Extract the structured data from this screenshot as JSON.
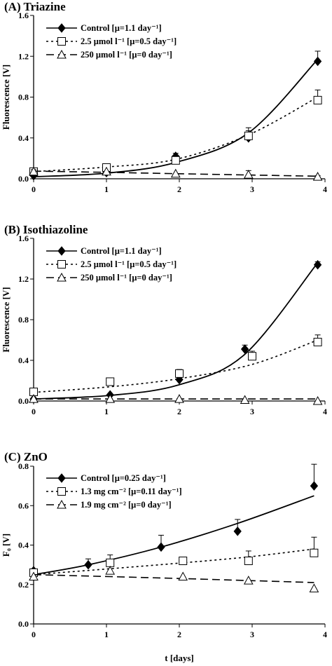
{
  "chart_data": [
    {
      "type": "line",
      "title": "(A) Triazine",
      "xlabel": "",
      "ylabel": "Fluorescence [V]",
      "xlim": [
        0,
        4
      ],
      "ylim": [
        0,
        1.6
      ],
      "xticks": [
        "0",
        "1",
        "2",
        "3",
        "4"
      ],
      "yticks": [
        "0.0",
        "0.4",
        "0.8",
        "1.2",
        "1.6"
      ],
      "grid": false,
      "legend_position": "top-left",
      "series": [
        {
          "name": "Control [μ=1.1 day⁻¹]",
          "marker": "filled-diamond",
          "line": "solid",
          "x": [
            0,
            1,
            1.95,
            2.95,
            3.9
          ],
          "y": [
            0.03,
            0.06,
            0.22,
            0.4,
            1.15
          ],
          "error": [
            0,
            0,
            0.03,
            0.07,
            0.1
          ],
          "fit_y": [
            0.02,
            0.055,
            0.16,
            0.45,
            1.17
          ]
        },
        {
          "name": "2.5 μmol l⁻¹ [μ=0.5 day⁻¹]",
          "marker": "open-square",
          "line": "dotted",
          "x": [
            0,
            1,
            1.95,
            2.95,
            3.9
          ],
          "y": [
            0.07,
            0.11,
            0.18,
            0.42,
            0.77
          ],
          "error": [
            0.02,
            0.03,
            0.03,
            0.08,
            0.1
          ],
          "fit_y": [
            0.07,
            0.115,
            0.19,
            0.43,
            0.8
          ]
        },
        {
          "name": "250 μmol l⁻¹ [μ=0 day⁻¹]",
          "marker": "open-triangle",
          "line": "dashed",
          "x": [
            0,
            1,
            1.95,
            2.95,
            3.9
          ],
          "y": [
            0.07,
            0.07,
            0.05,
            0.04,
            0.02
          ],
          "error": [
            0.02,
            0,
            0,
            0.04,
            0.01
          ],
          "fit_y": [
            0.075,
            0.063,
            0.05,
            0.037,
            0.025
          ]
        }
      ]
    },
    {
      "type": "line",
      "title": "(B) Isothiazoline",
      "xlabel": "",
      "ylabel": "Fluorescence [V]",
      "xlim": [
        0,
        4
      ],
      "ylim": [
        0,
        1.6
      ],
      "xticks": [
        "0",
        "1",
        "2",
        "3",
        "4"
      ],
      "yticks": [
        "0.0",
        "0.4",
        "0.8",
        "1.2",
        "1.6"
      ],
      "grid": false,
      "legend_position": "top-left",
      "series": [
        {
          "name": "Control [μ=1.1 day⁻¹]",
          "marker": "filled-diamond",
          "line": "solid",
          "x": [
            0,
            1.05,
            2,
            2.9,
            3.9
          ],
          "y": [
            0.02,
            0.06,
            0.21,
            0.51,
            1.34
          ],
          "error": [
            0,
            0,
            0.02,
            0.04,
            0.03
          ],
          "fit_y": [
            0.02,
            0.055,
            0.16,
            0.46,
            1.36
          ]
        },
        {
          "name": "2.5 μmol l⁻¹ [μ=0.5 day⁻¹]",
          "marker": "open-square",
          "line": "dotted",
          "x": [
            0,
            1.05,
            2,
            3,
            3.9
          ],
          "y": [
            0.09,
            0.19,
            0.27,
            0.44,
            0.58
          ],
          "error": [
            0,
            0,
            0.04,
            0.05,
            0.07
          ],
          "fit_y": [
            0.085,
            0.14,
            0.22,
            0.36,
            0.6
          ]
        },
        {
          "name": "250 μmol l⁻¹ [μ=0 day⁻¹]",
          "marker": "open-triangle",
          "line": "dashed",
          "x": [
            0,
            1.05,
            2,
            2.9,
            3.9
          ],
          "y": [
            0.02,
            0.02,
            0.02,
            0.01,
            0.0
          ],
          "error": [
            0,
            0,
            0,
            0,
            0
          ],
          "fit_y": [
            0.02,
            0.02,
            0.02,
            0.02,
            0.02
          ]
        }
      ]
    },
    {
      "type": "line",
      "title": "(C) ZnO",
      "xlabel": "t [days]",
      "ylabel": "F₀ [V]",
      "xlim": [
        0,
        4
      ],
      "ylim": [
        0,
        0.8
      ],
      "xticks": [
        "0",
        "1",
        "2",
        "3",
        "4"
      ],
      "yticks": [
        "0.0",
        "0.2",
        "0.4",
        "0.6",
        "0.8"
      ],
      "grid": false,
      "legend_position": "top-left",
      "series": [
        {
          "name": "Control [μ=0.25 day⁻¹]",
          "marker": "filled-diamond",
          "line": "solid",
          "x": [
            0,
            0.75,
            1.75,
            2.8,
            3.85
          ],
          "y": [
            0.27,
            0.3,
            0.39,
            0.47,
            0.7
          ],
          "error": [
            0,
            0.03,
            0.06,
            0.06,
            0.11
          ],
          "fit_y": [
            0.25,
            0.3,
            0.39,
            0.51,
            0.65
          ]
        },
        {
          "name": "1.3 mg cm⁻² [μ=0.11 day⁻¹]",
          "marker": "open-square",
          "line": "dotted",
          "x": [
            0,
            1.05,
            2.05,
            2.95,
            3.85
          ],
          "y": [
            0.26,
            0.31,
            0.32,
            0.32,
            0.36
          ],
          "error": [
            0,
            0.04,
            0,
            0.05,
            0.08
          ],
          "fit_y": [
            0.25,
            0.28,
            0.31,
            0.34,
            0.38
          ]
        },
        {
          "name": "1.9 mg cm⁻² [μ=0 day⁻¹]",
          "marker": "open-triangle",
          "line": "dashed",
          "x": [
            0,
            1.05,
            2.05,
            2.95,
            3.85
          ],
          "y": [
            0.24,
            0.27,
            0.24,
            0.22,
            0.18
          ],
          "error": [
            0,
            0,
            0,
            0,
            0
          ],
          "fit_y": [
            0.25,
            0.24,
            0.23,
            0.22,
            0.21
          ]
        }
      ]
    }
  ]
}
